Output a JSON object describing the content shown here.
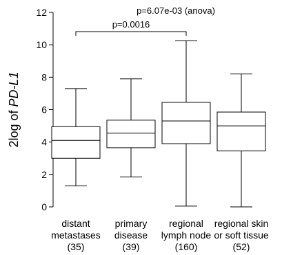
{
  "chart_data": {
    "type": "boxplot",
    "ylabel_prefix": "2log of ",
    "ylabel_gene": "PD-L1",
    "ylim": [
      0,
      12
    ],
    "yticks": [
      0,
      2,
      4,
      6,
      8,
      10,
      12
    ],
    "annotation_anova": "p=6.07e-03 (anova)",
    "annotation_pair": "p=0.0016",
    "pair_between": [
      0,
      2
    ],
    "grid": false,
    "categories": [
      {
        "line1": "distant",
        "line2": "metastases",
        "count": "(35)",
        "min": 1.3,
        "q1": 3.0,
        "median": 4.1,
        "q3": 4.95,
        "max": 7.3
      },
      {
        "line1": "primary",
        "line2": "disease",
        "count": "(39)",
        "min": 1.85,
        "q1": 3.65,
        "median": 4.55,
        "q3": 5.35,
        "max": 7.9
      },
      {
        "line1": "regional",
        "line2": "lymph node",
        "count": "(160)",
        "min": 0.05,
        "q1": 3.9,
        "median": 5.3,
        "q3": 6.45,
        "max": 10.25
      },
      {
        "line1": "regional skin",
        "line2": "or soft tissue",
        "count": "(52)",
        "min": 0.0,
        "q1": 3.45,
        "median": 5.0,
        "q3": 5.85,
        "max": 8.2
      }
    ]
  }
}
